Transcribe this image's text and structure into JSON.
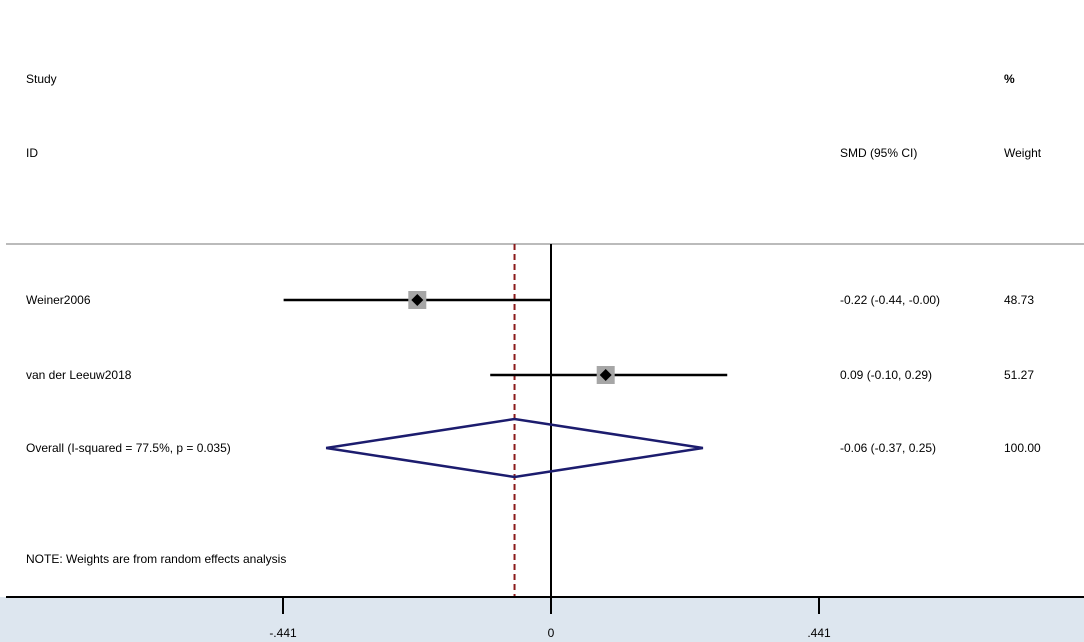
{
  "chart_data": {
    "type": "forest",
    "header": {
      "study_label": "Study",
      "id_label": "ID",
      "effect_label": "SMD (95% CI)",
      "weight_label_top": "%",
      "weight_label": "Weight"
    },
    "studies": [
      {
        "name": "Weiner2006",
        "estimate": -0.22,
        "lower": -0.44,
        "upper": -0.0,
        "ci_text": "-0.22 (-0.44, -0.00)",
        "weight_text": "48.73"
      },
      {
        "name": "van der Leeuw2018",
        "estimate": 0.09,
        "lower": -0.1,
        "upper": 0.29,
        "ci_text": "0.09 (-0.10, 0.29)",
        "weight_text": "51.27"
      }
    ],
    "overall": {
      "label": "Overall  (I-squared = 77.5%, p = 0.035)",
      "estimate": -0.06,
      "lower": -0.37,
      "upper": 0.25,
      "ci_text": "-0.06 (-0.37, 0.25)",
      "weight_text": "100.00"
    },
    "note": "NOTE: Weights are from random effects analysis",
    "x_axis": {
      "ticks": [
        -0.441,
        0,
        0.441
      ],
      "tick_labels": [
        "-.441",
        "0",
        ".441"
      ],
      "range": [
        -0.441,
        0.441
      ]
    },
    "colors": {
      "ci_line": "#000000",
      "marker": "#000000",
      "weight_box": "#a6a6a6",
      "diamond": "#1c1c6e",
      "overall_ref_line": "#8b1a1a"
    }
  }
}
